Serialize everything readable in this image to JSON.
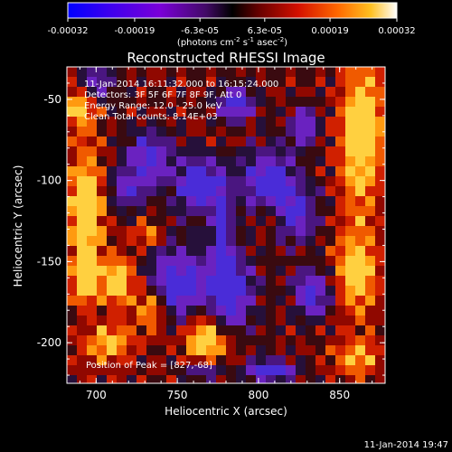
{
  "colorbar": {
    "ticks": [
      "-0.00032",
      "-0.00019",
      "-6.3e-05",
      "6.3e-05",
      "0.00019",
      "0.00032"
    ],
    "range": [
      -0.00032,
      0.00032
    ],
    "units_prefix": "(photons cm",
    "units_sup1": "-2",
    "units_mid": " s",
    "units_sup2": "-1",
    "units_mid2": " asec",
    "units_sup3": "-2",
    "units_suffix": ")"
  },
  "chart_data": {
    "type": "heatmap",
    "title": "Reconstructed RHESSI Image",
    "xlabel": "Heliocentric X (arcsec)",
    "ylabel": "Heliocentric Y (arcsec)",
    "xlim": [
      682,
      878
    ],
    "ylim": [
      -225,
      -30
    ],
    "xticks": [
      700,
      750,
      800,
      850
    ],
    "yticks": [
      -50,
      -100,
      -150,
      -200
    ],
    "annotations": [
      "11-Jan-2014 16:11:32.000 to 16:15:24.000",
      "Detectors: 3F 5F 6F 7F 8F 9F, Att 0",
      "Energy Range: 12.0 - 25.0 keV",
      "Clean    Total counts: 8.14E+03"
    ],
    "peak_label": "Position of Peak = [827,-68]",
    "peak": [
      827,
      -68
    ]
  },
  "footer": {
    "timestamp": "11-Jan-2014 19:47"
  }
}
